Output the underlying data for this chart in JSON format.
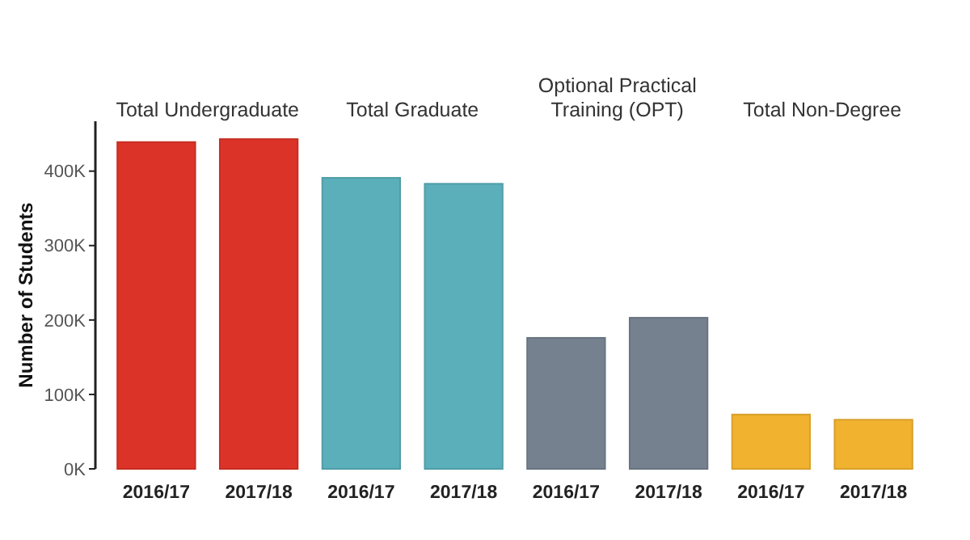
{
  "chart_data": {
    "type": "bar",
    "ylabel": "Number of Students",
    "categories": [
      "2016/17",
      "2017/18",
      "2016/17",
      "2017/18",
      "2016/17",
      "2017/18",
      "2016/17",
      "2017/18"
    ],
    "values": [
      439000,
      443000,
      391000,
      383000,
      176000,
      203000,
      73000,
      66000
    ],
    "colors": [
      "#dc3328",
      "#dc3328",
      "#5aafbb",
      "#5aafbb",
      "#75818f",
      "#75818f",
      "#f0b22f",
      "#f0b22f"
    ],
    "annotations": [
      "Total Undergraduate",
      "Total Graduate",
      "Optional Practical Training (OPT)",
      "Total Non-Degree"
    ],
    "ylim": [
      0,
      467000
    ],
    "yticks": [
      {
        "value": 0,
        "label": "0K"
      },
      {
        "value": 100000,
        "label": "100K"
      },
      {
        "value": 200000,
        "label": "200K"
      },
      {
        "value": 300000,
        "label": "300K"
      },
      {
        "value": 400000,
        "label": "400K"
      }
    ],
    "grid": false
  }
}
